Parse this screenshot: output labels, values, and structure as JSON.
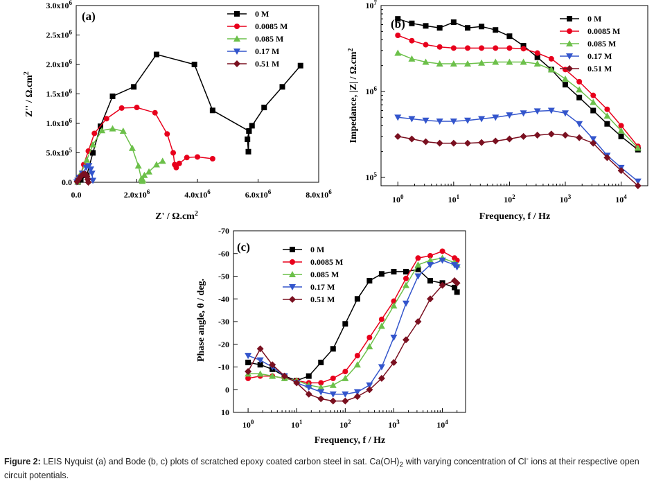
{
  "caption": {
    "prefix": "Figure 2:",
    "text": " LEIS Nyquist (a) and Bode (b, c) plots of scratched epoxy coated carbon steel in sat. Ca(OH)",
    "sub2": "2",
    "text2": " with varying concentration of Cl",
    "sup": "-",
    "text3": " ions at their respective open circuit potentials."
  },
  "series_styles": [
    {
      "name": "0 M",
      "color": "#000000",
      "marker": "square"
    },
    {
      "name": "0.0085 M",
      "color": "#e8001c",
      "marker": "circle"
    },
    {
      "name": "0.085 M",
      "color": "#6cc04a",
      "marker": "triangle-up"
    },
    {
      "name": "0.17 M",
      "color": "#3355cc",
      "marker": "triangle-down"
    },
    {
      "name": "0.51 M",
      "color": "#7a1020",
      "marker": "diamond"
    }
  ],
  "chart_data": [
    {
      "type": "scatter",
      "panel": "(a)",
      "xlabel": "Z' / Ω.cm²",
      "ylabel": "Z'' / Ω.cm²",
      "xlim": [
        0,
        8000000
      ],
      "ylim": [
        0,
        3000000
      ],
      "xticks": [
        0,
        2000000,
        4000000,
        6000000,
        8000000
      ],
      "xticklabels": [
        "0.0",
        "2.0x10⁶",
        "4.0x10⁶",
        "6.0x10⁶",
        "8.0x10⁶"
      ],
      "yticks": [
        0,
        500000,
        1000000,
        1500000,
        2000000,
        2500000,
        3000000
      ],
      "yticklabels": [
        "0.0",
        "5.0x10⁵",
        "1.0x10⁶",
        "1.5x10⁶",
        "2.0x10⁶",
        "2.5x10⁶",
        "3.0x10⁶"
      ],
      "legend": "top-right",
      "series": [
        {
          "name": "0 M",
          "points": [
            [
              7400000,
              1980000
            ],
            [
              6800000,
              1620000
            ],
            [
              6200000,
              1270000
            ],
            [
              5800000,
              960000
            ],
            [
              5700000,
              870000
            ],
            [
              5650000,
              730000
            ],
            [
              5680000,
              520000
            ],
            [
              5700000,
              870000
            ],
            [
              4500000,
              1220000
            ],
            [
              3900000,
              2000000
            ],
            [
              2650000,
              2170000
            ],
            [
              1900000,
              1620000
            ],
            [
              1200000,
              1460000
            ],
            [
              800000,
              950000
            ],
            [
              550000,
              500000
            ],
            [
              350000,
              120000
            ],
            [
              150000,
              40000
            ],
            [
              60000,
              5000
            ]
          ]
        },
        {
          "name": "0.0085 M",
          "points": [
            [
              4500000,
              400000
            ],
            [
              4000000,
              430000
            ],
            [
              3650000,
              420000
            ],
            [
              3400000,
              320000
            ],
            [
              3300000,
              250000
            ],
            [
              3250000,
              300000
            ],
            [
              3200000,
              500000
            ],
            [
              3000000,
              820000
            ],
            [
              2600000,
              1180000
            ],
            [
              2000000,
              1270000
            ],
            [
              1500000,
              1260000
            ],
            [
              1000000,
              1080000
            ],
            [
              600000,
              830000
            ],
            [
              400000,
              530000
            ],
            [
              250000,
              300000
            ],
            [
              120000,
              100000
            ],
            [
              40000,
              10000
            ]
          ]
        },
        {
          "name": "0.085 M",
          "points": [
            [
              2850000,
              360000
            ],
            [
              2650000,
              300000
            ],
            [
              2400000,
              180000
            ],
            [
              2250000,
              120000
            ],
            [
              2200000,
              40000
            ],
            [
              2180000,
              20000
            ],
            [
              2150000,
              60000
            ],
            [
              2050000,
              280000
            ],
            [
              1850000,
              580000
            ],
            [
              1550000,
              870000
            ],
            [
              1200000,
              910000
            ],
            [
              850000,
              880000
            ],
            [
              550000,
              640000
            ],
            [
              350000,
              380000
            ],
            [
              150000,
              150000
            ],
            [
              50000,
              10000
            ]
          ]
        },
        {
          "name": "0.17 M",
          "points": [
            [
              550000,
              30000
            ],
            [
              520000,
              150000
            ],
            [
              480000,
              220000
            ],
            [
              420000,
              280000
            ],
            [
              330000,
              250000
            ],
            [
              200000,
              150000
            ],
            [
              100000,
              80000
            ],
            [
              50000,
              30000
            ],
            [
              20000,
              5000
            ]
          ]
        },
        {
          "name": "0.51 M",
          "points": [
            [
              400000,
              0
            ],
            [
              380000,
              50000
            ],
            [
              350000,
              100000
            ],
            [
              300000,
              140000
            ],
            [
              230000,
              140000
            ],
            [
              150000,
              100000
            ],
            [
              80000,
              50000
            ],
            [
              30000,
              10000
            ]
          ]
        }
      ]
    },
    {
      "type": "line",
      "panel": "(b)",
      "xscale": "log",
      "yscale": "log",
      "xlabel": "Frequency, f / Hz",
      "ylabel": "Impedance, |Z| / Ω.cm²",
      "xlim": [
        0.5,
        30000
      ],
      "ylim": [
        80000,
        10000000
      ],
      "xticklabels": [
        "10⁰",
        "10¹",
        "10²",
        "10³",
        "10⁴"
      ],
      "yticklabels": [
        "10⁵",
        "10⁶",
        "10⁷"
      ],
      "legend": "top-right",
      "x": [
        1,
        1.78,
        3.16,
        5.62,
        10,
        17.8,
        31.6,
        56.2,
        100,
        178,
        316,
        562,
        1000,
        1780,
        3160,
        5620,
        10000,
        20000
      ],
      "series": [
        {
          "name": "0 M",
          "values": [
            7000000,
            6200000,
            5800000,
            5500000,
            6400000,
            5500000,
            5700000,
            5200000,
            4400000,
            3400000,
            2500000,
            1800000,
            1200000,
            850000,
            600000,
            420000,
            300000,
            210000
          ]
        },
        {
          "name": "0.0085 M",
          "values": [
            4500000,
            3900000,
            3500000,
            3300000,
            3200000,
            3200000,
            3200000,
            3200000,
            3200000,
            3150000,
            2800000,
            2400000,
            1800000,
            1300000,
            900000,
            620000,
            400000,
            230000
          ]
        },
        {
          "name": "0.085 M",
          "values": [
            2800000,
            2400000,
            2200000,
            2100000,
            2100000,
            2100000,
            2150000,
            2200000,
            2200000,
            2200000,
            2100000,
            1800000,
            1400000,
            1050000,
            750000,
            520000,
            350000,
            220000
          ]
        },
        {
          "name": "0.17 M",
          "values": [
            500000,
            480000,
            460000,
            450000,
            450000,
            460000,
            480000,
            500000,
            530000,
            560000,
            590000,
            600000,
            560000,
            420000,
            280000,
            180000,
            130000,
            90000
          ]
        },
        {
          "name": "0.51 M",
          "values": [
            300000,
            280000,
            260000,
            250000,
            250000,
            250000,
            255000,
            265000,
            280000,
            300000,
            310000,
            320000,
            310000,
            290000,
            250000,
            170000,
            120000,
            80000
          ]
        }
      ]
    },
    {
      "type": "line",
      "panel": "(c)",
      "xscale": "log",
      "xlabel": "Frequency, f / Hz",
      "ylabel": "Phase angle, θ / deg.",
      "xlim": [
        0.5,
        30000
      ],
      "ylim": [
        10,
        -70
      ],
      "yticks": [
        10,
        0,
        -10,
        -20,
        -30,
        -40,
        -50,
        -60,
        -70
      ],
      "yticklabels": [
        "10",
        "0",
        "-10",
        "-20",
        "-30",
        "-40",
        "-50",
        "-60",
        "-70"
      ],
      "xticklabels": [
        "10⁰",
        "10¹",
        "10²",
        "10³",
        "10⁴"
      ],
      "legend": "top-left",
      "x": [
        1,
        1.78,
        3.16,
        5.62,
        10,
        17.8,
        31.6,
        56.2,
        100,
        178,
        316,
        562,
        1000,
        1780,
        3160,
        5620,
        10000,
        17800,
        20000
      ],
      "series": [
        {
          "name": "0 M",
          "values": [
            -12,
            -11,
            -9,
            -6,
            -4,
            -6,
            -12,
            -18,
            -29,
            -40,
            -48,
            -51,
            -52,
            -52,
            -53,
            -48,
            -47,
            -45,
            -43
          ]
        },
        {
          "name": "0.0085 M",
          "values": [
            -5,
            -6,
            -6,
            -5,
            -4,
            -3,
            -3,
            -5,
            -8,
            -15,
            -23,
            -31,
            -39,
            -49,
            -58,
            -59,
            -61,
            -58,
            -57
          ]
        },
        {
          "name": "0.085 M",
          "values": [
            -7,
            -7,
            -6,
            -5,
            -4,
            -2,
            -1,
            -2,
            -5,
            -11,
            -19,
            -28,
            -37,
            -46,
            -55,
            -57,
            -58,
            -56,
            -55
          ]
        },
        {
          "name": "0.17 M",
          "values": [
            -15,
            -13,
            -10,
            -6,
            -3,
            -1,
            1,
            2,
            2,
            1,
            -2,
            -10,
            -23,
            -38,
            -50,
            -55,
            -57,
            -55,
            -54
          ]
        },
        {
          "name": "0.51 M",
          "values": [
            -8,
            -18,
            -11,
            -6,
            -3,
            2,
            4,
            5,
            5,
            3,
            0,
            -5,
            -12,
            -22,
            -30,
            -40,
            -46,
            -48,
            -47
          ]
        }
      ]
    }
  ]
}
